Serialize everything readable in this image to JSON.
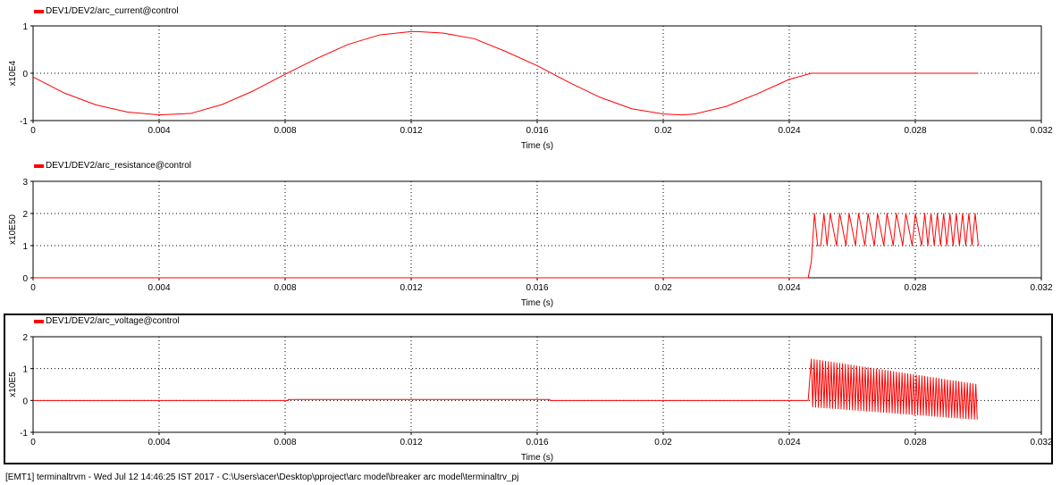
{
  "status_bar": {
    "text": "[EMT1] terminaltrvm - Wed Jul 12 14:46:25 IST 2017 - C:\\Users\\acer\\Desktop\\pproject\\arc model\\breaker arc model\\terminaltrv_pj"
  },
  "colors": {
    "series": "#ff0000",
    "grid": "#000000",
    "frame": "#000000"
  },
  "chart_data": [
    {
      "type": "line",
      "legend": "DEV1/DEV2/arc_current@control",
      "xlabel": "Time (s)",
      "ylabel": "x10E4",
      "xlim": [
        0,
        0.032
      ],
      "ylim": [
        -1,
        1
      ],
      "xticks": [
        0,
        0.004,
        0.008,
        0.012,
        0.016,
        0.02,
        0.024,
        0.028,
        0.032
      ],
      "xtick_labels": [
        "0",
        "0.004",
        "0.008",
        "0.012",
        "0.016",
        "0.02",
        "0.024",
        "0.028",
        "0.032"
      ],
      "yticks": [
        -1,
        0,
        1
      ],
      "ytick_labels": [
        "-1",
        "0",
        "1"
      ],
      "grid": true,
      "selected": false,
      "series": [
        {
          "x": [
            0,
            0.001,
            0.002,
            0.003,
            0.004,
            0.005,
            0.006,
            0.007,
            0.008,
            0.009,
            0.01,
            0.011,
            0.012,
            0.0122,
            0.013,
            0.014,
            0.015,
            0.016,
            0.017,
            0.018,
            0.019,
            0.02,
            0.0206,
            0.021,
            0.022,
            0.023,
            0.024,
            0.0247,
            0.03
          ],
          "y": [
            -0.08,
            -0.42,
            -0.67,
            -0.82,
            -0.88,
            -0.85,
            -0.66,
            -0.37,
            -0.02,
            0.31,
            0.61,
            0.81,
            0.88,
            0.88,
            0.85,
            0.73,
            0.46,
            0.16,
            -0.19,
            -0.51,
            -0.75,
            -0.86,
            -0.88,
            -0.86,
            -0.7,
            -0.43,
            -0.13,
            0.0,
            0.0
          ]
        }
      ]
    },
    {
      "type": "line",
      "legend": "DEV1/DEV2/arc_resistance@control",
      "xlabel": "Time (s)",
      "ylabel": "x10E50",
      "xlim": [
        0,
        0.032
      ],
      "ylim": [
        0,
        3
      ],
      "xticks": [
        0,
        0.004,
        0.008,
        0.012,
        0.016,
        0.02,
        0.024,
        0.028,
        0.032
      ],
      "xtick_labels": [
        "0",
        "0.004",
        "0.008",
        "0.012",
        "0.016",
        "0.02",
        "0.024",
        "0.028",
        "0.032"
      ],
      "yticks": [
        0,
        1,
        2,
        3
      ],
      "ytick_labels": [
        "0",
        "1",
        "2",
        "3"
      ],
      "grid": true,
      "selected": false,
      "series": [
        {
          "x": [
            0,
            0.0246,
            0.0247,
            0.0248,
            0.0249,
            0.025,
            0.0251,
            0.0252,
            0.0253,
            0.0255,
            0.0256,
            0.0258,
            0.0259,
            0.0261,
            0.0262,
            0.0264,
            0.0265,
            0.0267,
            0.0268,
            0.027,
            0.0271,
            0.0273,
            0.0274,
            0.0276,
            0.0277,
            0.0279,
            0.028,
            0.0282,
            0.0283,
            0.0284,
            0.0285,
            0.0286,
            0.0287,
            0.0288,
            0.0289,
            0.029,
            0.0291,
            0.0292,
            0.0293,
            0.0294,
            0.0295,
            0.0296,
            0.0297,
            0.0298,
            0.0299,
            0.03
          ],
          "y": [
            0,
            0,
            0.5,
            2,
            1,
            1,
            2,
            1,
            2,
            1,
            2,
            1,
            2,
            1,
            2,
            1,
            2,
            1,
            2,
            1,
            2,
            1,
            2,
            1,
            2,
            1,
            2,
            1,
            2,
            1,
            2,
            1,
            2,
            1,
            2,
            1,
            2,
            1,
            2,
            1,
            2,
            1,
            2,
            1,
            2,
            1
          ]
        }
      ]
    },
    {
      "type": "line",
      "legend": "DEV1/DEV2/arc_voltage@control",
      "xlabel": "Time (s)",
      "ylabel": "x10E5",
      "xlim": [
        0,
        0.032
      ],
      "ylim": [
        -1,
        2
      ],
      "xticks": [
        0,
        0.004,
        0.008,
        0.012,
        0.016,
        0.02,
        0.024,
        0.028,
        0.032
      ],
      "xtick_labels": [
        "0",
        "0.004",
        "0.008",
        "0.012",
        "0.016",
        "0.02",
        "0.024",
        "0.028",
        "0.032"
      ],
      "yticks": [
        -1,
        0,
        1,
        2
      ],
      "ytick_labels": [
        "-1",
        "0",
        "1",
        "2"
      ],
      "grid": true,
      "selected": true,
      "series": [
        {
          "x": [
            0,
            0.0081,
            0.0081,
            0.0164,
            0.0164,
            0.0246
          ],
          "y": [
            0,
            0,
            0.03,
            0.03,
            0,
            0
          ],
          "oscillation": {
            "x_start": 0.0247,
            "x_end": 0.03,
            "period": 9e-05,
            "upper_start": 1.3,
            "upper_end": 0.5,
            "lower_start": -0.2,
            "lower_end": -0.6
          }
        }
      ]
    }
  ]
}
